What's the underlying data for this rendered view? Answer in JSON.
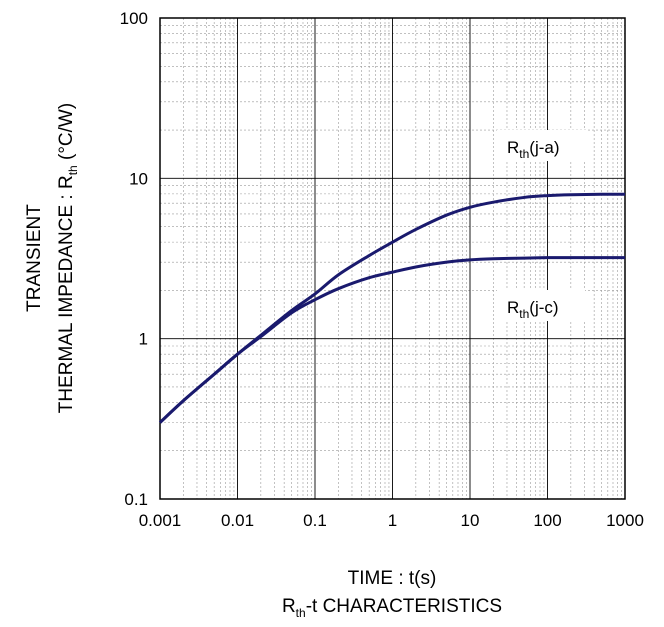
{
  "chart_data": {
    "type": "line",
    "x_scale": "log",
    "y_scale": "log",
    "xlim": [
      0.001,
      1000
    ],
    "ylim": [
      0.1,
      100
    ],
    "x_ticks": [
      "0.001",
      "0.01",
      "0.1",
      "1",
      "10",
      "100",
      "1000"
    ],
    "y_ticks": [
      "0.1",
      "1",
      "10",
      "100"
    ],
    "grid": true,
    "xlabel": "TIME : t(s)",
    "ylabel": {
      "line1": "TRANSIENT",
      "line2_main": "THERMAL IMPEDANCE : R",
      "line2_sub": "th",
      "line2_unit": " (°C/W)"
    },
    "caption": {
      "main": "R",
      "sub": "th",
      "rest": "-t CHARACTERISTICS"
    },
    "series": [
      {
        "name": {
          "main": "R",
          "sub": "th",
          "rest": "(j-a)"
        },
        "color": "#1a1a6e",
        "x": [
          0.001,
          0.002,
          0.005,
          0.01,
          0.02,
          0.05,
          0.1,
          0.2,
          0.5,
          1,
          2,
          5,
          10,
          20,
          50,
          100,
          200,
          500,
          1000
        ],
        "y": [
          0.3,
          0.41,
          0.6,
          0.8,
          1.05,
          1.5,
          1.9,
          2.5,
          3.3,
          4.0,
          4.8,
          5.9,
          6.6,
          7.1,
          7.6,
          7.8,
          7.9,
          7.95,
          7.95
        ]
      },
      {
        "name": {
          "main": "R",
          "sub": "th",
          "rest": "(j-c)"
        },
        "color": "#1a1a6e",
        "x": [
          0.001,
          0.002,
          0.005,
          0.01,
          0.02,
          0.05,
          0.1,
          0.2,
          0.5,
          1,
          2,
          5,
          10,
          20,
          50,
          100,
          200,
          500,
          1000
        ],
        "y": [
          0.3,
          0.41,
          0.6,
          0.8,
          1.03,
          1.45,
          1.75,
          2.05,
          2.4,
          2.6,
          2.8,
          3.0,
          3.1,
          3.15,
          3.18,
          3.2,
          3.2,
          3.2,
          3.2
        ]
      }
    ]
  }
}
